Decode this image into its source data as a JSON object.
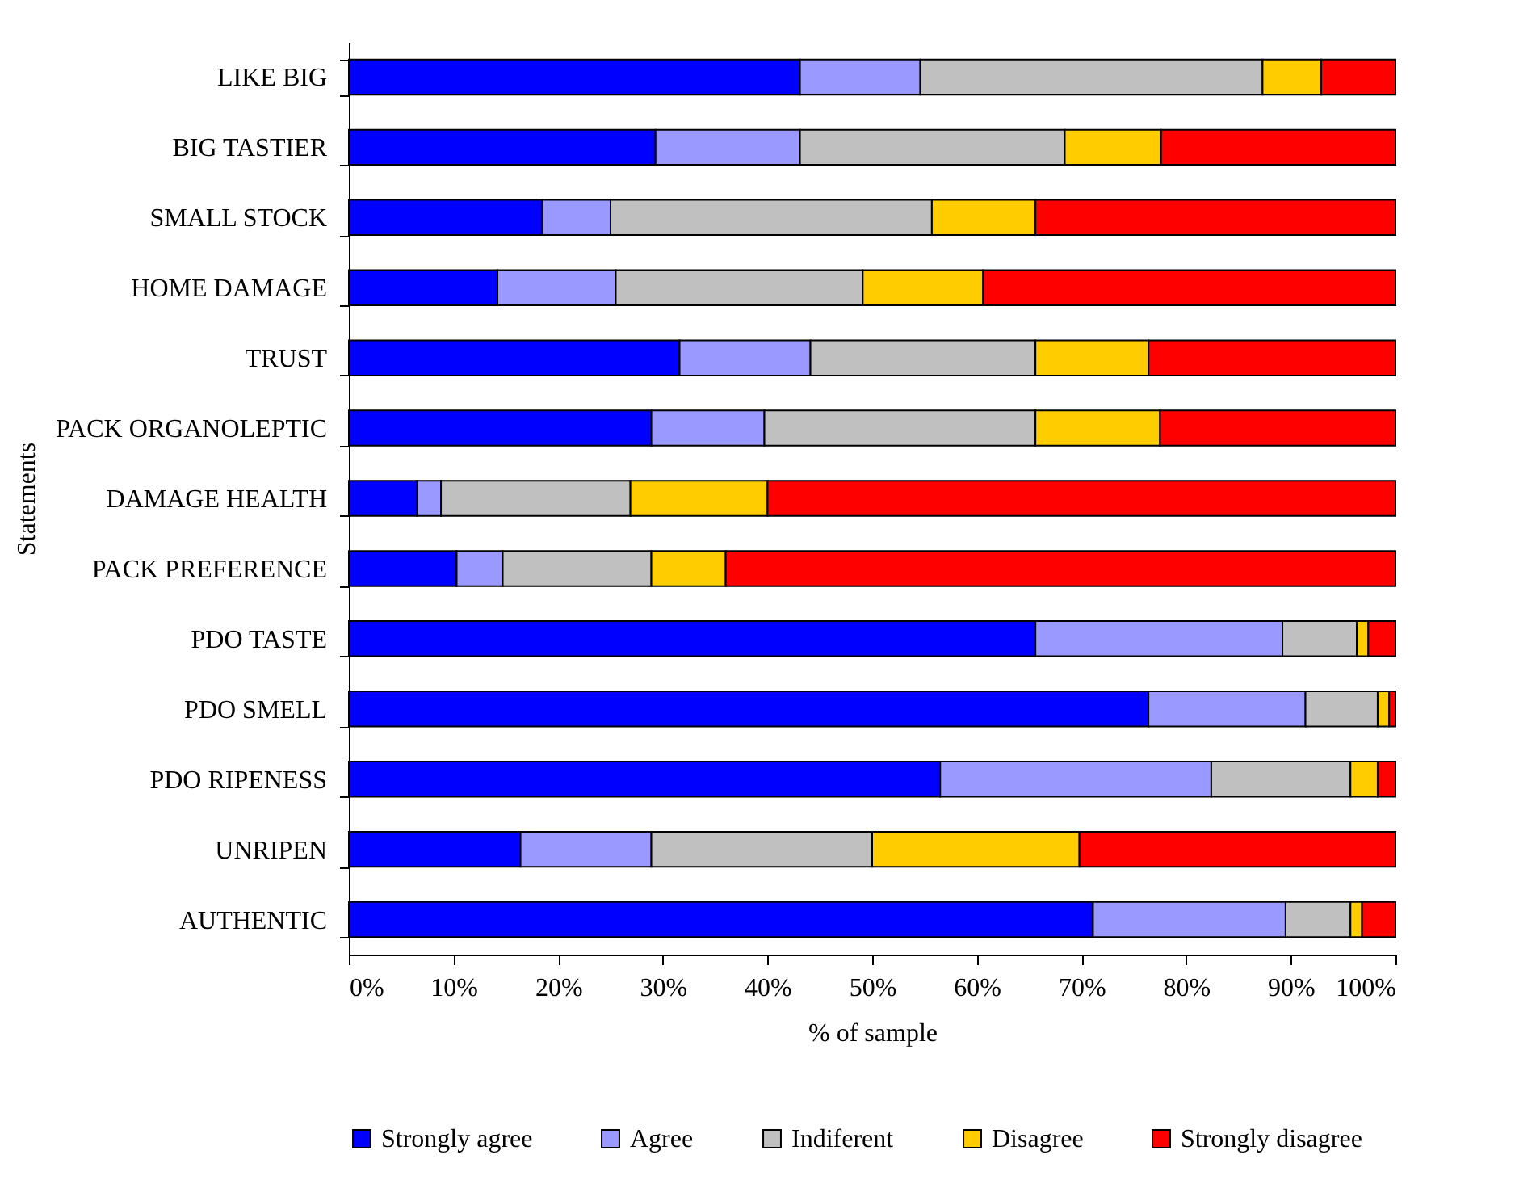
{
  "chart_data": {
    "type": "bar",
    "orientation": "horizontal",
    "stacked": true,
    "xlabel": "% of sample",
    "ylabel": "Statements",
    "legend": "bottom",
    "categories": [
      "LIKE BIG",
      "BIG TASTIER",
      "SMALL STOCK",
      "HOME DAMAGE",
      "TRUST",
      "PACK ORGANOLEPTIC",
      "DAMAGE HEALTH",
      "PACK PREFERENCE",
      "PDO TASTE",
      "PDO SMELL",
      "PDO RIPENESS",
      "UNRIPEN",
      "AUTHENTIC"
    ],
    "xlim": [
      0,
      100
    ],
    "xticks": [
      {
        "value": 0,
        "label": "0%"
      },
      {
        "value": 10,
        "label": "10%"
      },
      {
        "value": 20,
        "label": "20%"
      },
      {
        "value": 30,
        "label": "30%"
      },
      {
        "value": 40,
        "label": "40%"
      },
      {
        "value": 50,
        "label": "50%"
      },
      {
        "value": 60,
        "label": "60%"
      },
      {
        "value": 70,
        "label": "70%"
      },
      {
        "value": 80,
        "label": "80%"
      },
      {
        "value": 90,
        "label": "90%"
      },
      {
        "value": 100,
        "label": "100%"
      }
    ],
    "series": [
      {
        "name": "Strongly agree",
        "color": "#0000ff",
        "values": [
          43.1,
          29.3,
          18.5,
          14.2,
          31.6,
          28.9,
          6.5,
          10.3,
          65.6,
          76.4,
          56.5,
          16.4,
          71.1
        ]
      },
      {
        "name": "Agree",
        "color": "#9999ff",
        "values": [
          11.5,
          13.8,
          6.5,
          11.3,
          12.5,
          10.8,
          2.3,
          4.4,
          23.6,
          15.0,
          25.9,
          12.5,
          18.4
        ]
      },
      {
        "name": "Indiferent",
        "color": "#c0c0c0",
        "values": [
          32.7,
          25.3,
          30.7,
          23.6,
          21.5,
          25.9,
          18.1,
          14.2,
          7.1,
          6.9,
          13.3,
          21.1,
          6.2
        ]
      },
      {
        "name": "Disagree",
        "color": "#ffcc00",
        "values": [
          5.6,
          9.2,
          9.9,
          11.5,
          10.8,
          11.9,
          13.1,
          7.1,
          1.1,
          1.1,
          2.6,
          19.8,
          1.1
        ]
      },
      {
        "name": "Strongly disagree",
        "color": "#ff0000",
        "values": [
          7.1,
          22.4,
          34.4,
          39.4,
          23.6,
          22.5,
          60.0,
          64.0,
          2.6,
          0.6,
          1.7,
          30.2,
          3.2
        ]
      }
    ]
  }
}
